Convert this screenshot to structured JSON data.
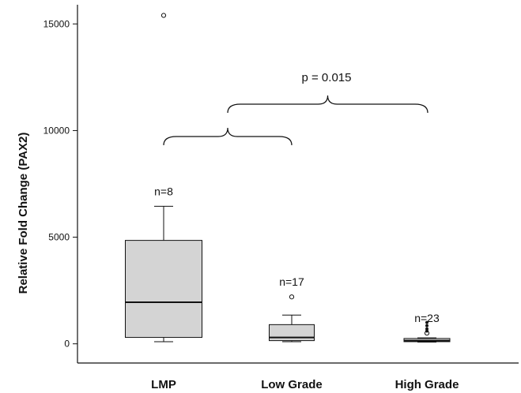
{
  "chart_data": {
    "type": "box",
    "ylabel": "Relative Fold Change (PAX2)",
    "xlabel": "",
    "ylim": [
      -900,
      15900
    ],
    "yticks": [
      0,
      5000,
      10000,
      15000
    ],
    "ytick_labels": [
      "0",
      "5000",
      "10000",
      "15000"
    ],
    "categories": [
      "LMP",
      "Low Grade",
      "High Grade"
    ],
    "groups": [
      {
        "name": "LMP",
        "n_label": "n=8",
        "whisker_low": 100,
        "q1": 300,
        "median": 1950,
        "q3": 4850,
        "whisker_high": 6450,
        "outliers": [
          15400
        ],
        "extremes": []
      },
      {
        "name": "Low Grade",
        "n_label": "n=17",
        "whisker_low": 100,
        "q1": 150,
        "median": 300,
        "q3": 900,
        "whisker_high": 1350,
        "outliers": [
          2200
        ],
        "extremes": []
      },
      {
        "name": "High Grade",
        "n_label": "n=23",
        "whisker_low": 80,
        "q1": 100,
        "median": 150,
        "q3": 250,
        "whisker_high": 280,
        "outliers": [
          500
        ],
        "extremes": [
          600,
          700,
          850,
          1000
        ]
      }
    ],
    "annotations": [
      {
        "text": "p = 0.015",
        "compares": [
          "LMP",
          "Low Grade + High Grade"
        ]
      }
    ],
    "box_color": "#d4d4d4",
    "line_color": "#111111"
  }
}
